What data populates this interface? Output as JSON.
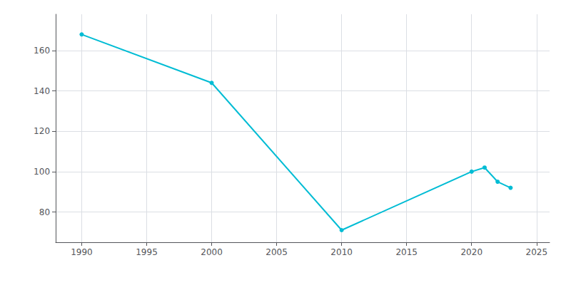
{
  "chart_data": {
    "type": "line",
    "x": [
      1990,
      2000,
      2010,
      2020,
      2021,
      2022,
      2023
    ],
    "values": [
      168,
      144,
      71,
      100,
      102,
      95,
      92
    ],
    "color": "#00BCD4",
    "marker": "circle",
    "xlim": [
      1988,
      2026
    ],
    "xticks": [
      1990,
      1995,
      2000,
      2005,
      2010,
      2015,
      2020,
      2025
    ],
    "ylim": [
      65,
      178
    ],
    "yticks": [
      80,
      100,
      120,
      140,
      160
    ],
    "grid": true
  }
}
